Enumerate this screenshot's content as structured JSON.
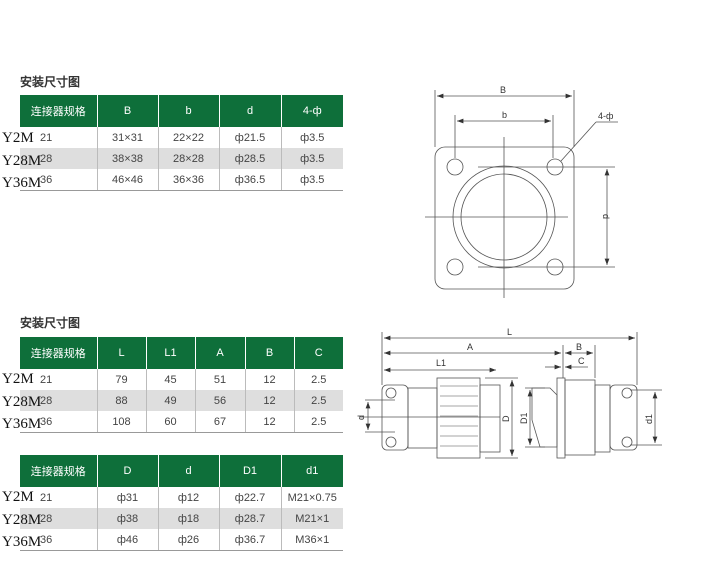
{
  "section_title_1": "安装尺寸图",
  "section_title_2": "安装尺寸图",
  "table1": {
    "headers": [
      "连接器规格",
      "B",
      "b",
      "d",
      "4-ф"
    ],
    "rows": [
      [
        "21",
        "31×31",
        "22×22",
        "ф21.5",
        "ф3.5"
      ],
      [
        "28",
        "38×38",
        "28×28",
        "ф28.5",
        "ф3.5"
      ],
      [
        "36",
        "46×46",
        "36×36",
        "ф36.5",
        "ф3.5"
      ]
    ]
  },
  "table2": {
    "headers": [
      "连接器规格",
      "L",
      "L1",
      "A",
      "B",
      "C"
    ],
    "rows": [
      [
        "21",
        "79",
        "45",
        "51",
        "12",
        "2.5"
      ],
      [
        "28",
        "88",
        "49",
        "56",
        "12",
        "2.5"
      ],
      [
        "36",
        "108",
        "60",
        "67",
        "12",
        "2.5"
      ]
    ]
  },
  "table3": {
    "headers": [
      "连接器规格",
      "D",
      "d",
      "D1",
      "d1"
    ],
    "rows": [
      [
        "21",
        "ф31",
        "ф12",
        "ф22.7",
        "M21×0.75"
      ],
      [
        "28",
        "ф38",
        "ф18",
        "ф28.7",
        "M21×1"
      ],
      [
        "36",
        "ф46",
        "ф26",
        "ф36.7",
        "M36×1"
      ]
    ]
  },
  "models": [
    "Y2M",
    "Y28M",
    "Y36M"
  ],
  "drawing1": {
    "labels": {
      "B": "B",
      "b": "b",
      "d": "d",
      "holes": "4-ф"
    }
  },
  "drawing2": {
    "labels": {
      "L": "L",
      "A": "A",
      "L1": "L1",
      "B": "B",
      "C": "C",
      "d": "d",
      "D": "D",
      "D1": "D1",
      "d1": "d1"
    }
  },
  "colors": {
    "header": "#0e6f3a",
    "alt_row": "#dedede"
  }
}
